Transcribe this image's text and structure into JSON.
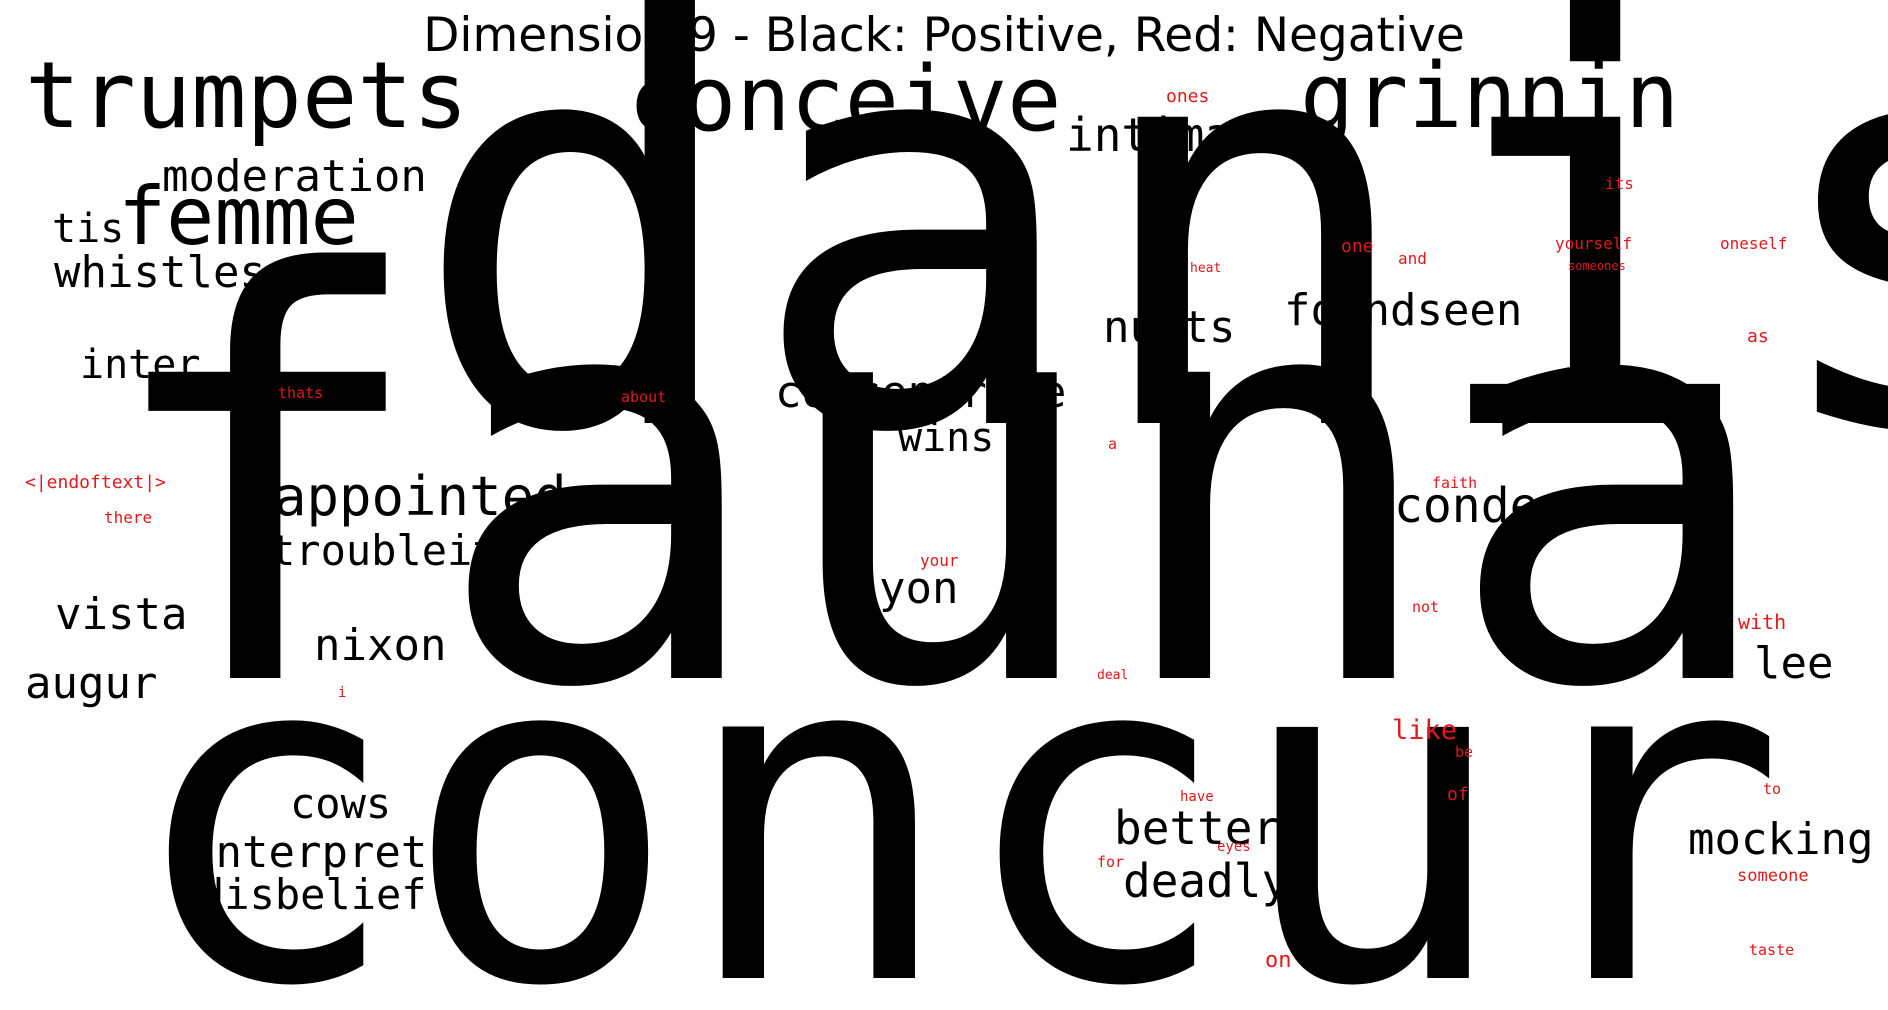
{
  "title": "Dimension 9 - Black: Positive, Red: Negative",
  "colors": {
    "positive": "#000000",
    "negative": "#e0191b",
    "background": "#ffffff"
  },
  "positive_words": [
    "danish",
    "fauna",
    "concur",
    "trumpets",
    "conceive",
    "grinnin",
    "intimate",
    "moderation",
    "femme",
    "tis",
    "whistles",
    "nurts",
    "foundseen",
    "inter",
    "concentrate",
    "wins",
    "appointed",
    "condescend",
    "troubleit",
    "yon",
    "vista",
    "nixon",
    "augur",
    "lee",
    "cows",
    "betters",
    "mocking",
    "interpret",
    "deadly",
    "disbelief"
  ],
  "negative_words": [
    "ones",
    "its",
    "yourself",
    "oneself",
    "one",
    "and",
    "heat",
    "someones",
    "as",
    "thats",
    "about",
    "a",
    "<|endoftext|>",
    "faith",
    "there",
    "your",
    "not",
    "with",
    "deal",
    "i",
    "like",
    "be",
    "have",
    "of",
    "to",
    "eyes",
    "for",
    "someone",
    "on",
    "taste"
  ]
}
